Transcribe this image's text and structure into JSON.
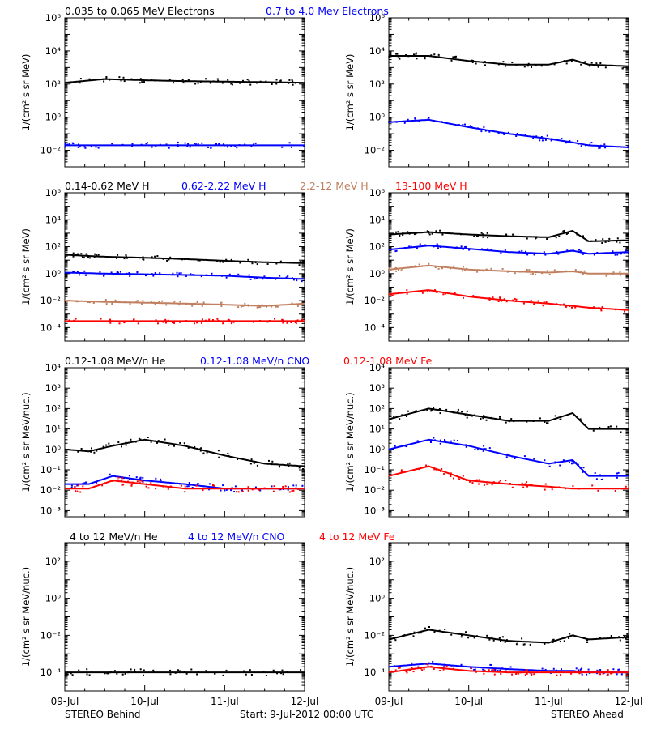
{
  "colors": {
    "black": "#000000",
    "blue": "#0000ff",
    "tan": "#c08060",
    "red": "#ff0000"
  },
  "x_ticks": [
    "09-Jul",
    "10-Jul",
    "11-Jul",
    "12-Jul"
  ],
  "footer": {
    "left": "STEREO Behind",
    "center": "Start:  9-Jul-2012 00:00 UTC",
    "right": "STEREO Ahead"
  },
  "chart_data": [
    {
      "type": "scatter",
      "panel": "electrons-behind",
      "xlabel": "",
      "ylabel": "1/(cm² s sr MeV)",
      "scale": "log",
      "ylim": [
        0.001,
        1000000
      ],
      "y_ticks": [
        [
          "10⁶",
          1000000
        ],
        [
          "10⁴",
          10000
        ],
        [
          "10²",
          100
        ],
        [
          "10⁰",
          1
        ],
        [
          "10⁻²",
          0.01
        ]
      ],
      "x": [
        0,
        0.5,
        1,
        1.5,
        2,
        2.5,
        3
      ],
      "series": [
        {
          "name": "0.035 to 0.065 MeV Electrons",
          "color": "#000000",
          "y": [
            120,
            200,
            170,
            150,
            140,
            130,
            120
          ]
        },
        {
          "name": "0.7 to 4.0 Mev Electrons",
          "color": "#0000ff",
          "y": [
            0.02,
            0.02,
            0.02,
            0.02,
            0.02,
            0.02,
            0.02
          ]
        }
      ]
    },
    {
      "type": "scatter",
      "panel": "electrons-ahead",
      "xlabel": "",
      "ylabel": "1/(cm² s sr MeV)",
      "scale": "log",
      "ylim": [
        0.001,
        1000000
      ],
      "y_ticks": [
        [
          "10⁶",
          1000000
        ],
        [
          "10⁴",
          10000
        ],
        [
          "10²",
          100
        ],
        [
          "10⁰",
          1
        ],
        [
          "10⁻²",
          0.01
        ]
      ],
      "x": [
        0,
        0.5,
        1,
        1.5,
        2,
        2.3,
        2.5,
        3
      ],
      "series": [
        {
          "name": "",
          "color": "#000000",
          "y": [
            5000,
            5000,
            2500,
            1500,
            1500,
            3000,
            1500,
            1200
          ]
        },
        {
          "name": "",
          "color": "#0000ff",
          "y": [
            0.5,
            0.7,
            0.25,
            0.1,
            0.05,
            0.03,
            0.02,
            0.015
          ]
        }
      ]
    },
    {
      "type": "scatter",
      "panel": "protons-behind",
      "xlabel": "",
      "ylabel": "1/(cm² s sr MeV)",
      "scale": "log",
      "ylim": [
        1e-05,
        1000000
      ],
      "y_ticks": [
        [
          "10⁶",
          1000000
        ],
        [
          "10⁴",
          10000
        ],
        [
          "10²",
          100
        ],
        [
          "10⁰",
          1
        ],
        [
          "10⁻²",
          0.01
        ],
        [
          "10⁻⁴",
          0.0001
        ]
      ],
      "x": [
        0,
        0.5,
        1,
        1.5,
        2,
        2.5,
        3
      ],
      "series": [
        {
          "name": "0.14-0.62 MeV H",
          "color": "#000000",
          "y": [
            25,
            18,
            15,
            12,
            9,
            7,
            6
          ]
        },
        {
          "name": "0.62-2.22 MeV H",
          "color": "#0000ff",
          "y": [
            1.2,
            1.0,
            0.9,
            0.8,
            0.7,
            0.5,
            0.4
          ]
        },
        {
          "name": "2.2-12 MeV H",
          "color": "#c08060",
          "y": [
            0.01,
            0.008,
            0.007,
            0.006,
            0.005,
            0.004,
            0.006
          ]
        },
        {
          "name": "13-100 MeV H",
          "color": "#ff0000",
          "y": [
            0.0003,
            0.0003,
            0.0003,
            0.0003,
            0.0003,
            0.0003,
            0.0003
          ]
        }
      ]
    },
    {
      "type": "scatter",
      "panel": "protons-ahead",
      "xlabel": "",
      "ylabel": "1/(cm² s sr MeV)",
      "scale": "log",
      "ylim": [
        1e-05,
        1000000
      ],
      "y_ticks": [
        [
          "10⁶",
          1000000
        ],
        [
          "10⁴",
          10000
        ],
        [
          "10²",
          100
        ],
        [
          "10⁰",
          1
        ],
        [
          "10⁻²",
          0.01
        ],
        [
          "10⁻⁴",
          0.0001
        ]
      ],
      "x": [
        0,
        0.5,
        1,
        1.5,
        2,
        2.3,
        2.5,
        3
      ],
      "series": [
        {
          "name": "",
          "color": "#000000",
          "y": [
            800,
            1200,
            800,
            600,
            500,
            1500,
            250,
            300
          ]
        },
        {
          "name": "",
          "color": "#0000ff",
          "y": [
            60,
            120,
            70,
            40,
            30,
            50,
            30,
            40
          ]
        },
        {
          "name": "",
          "color": "#c08060",
          "y": [
            2,
            4,
            2,
            1.5,
            1.2,
            1.5,
            1.0,
            1.0
          ]
        },
        {
          "name": "",
          "color": "#ff0000",
          "y": [
            0.03,
            0.06,
            0.02,
            0.01,
            0.006,
            0.004,
            0.003,
            0.002
          ]
        }
      ]
    },
    {
      "type": "scatter",
      "panel": "heavy-ions-behind",
      "xlabel": "",
      "ylabel": "1/(cm² s sr MeV/nuc.)",
      "scale": "log",
      "ylim": [
        0.0005,
        10000
      ],
      "y_ticks": [
        [
          "10⁴",
          10000
        ],
        [
          "10³",
          1000
        ],
        [
          "10²",
          100
        ],
        [
          "10¹",
          10
        ],
        [
          "10⁰",
          1
        ],
        [
          "10⁻¹",
          0.1
        ],
        [
          "10⁻²",
          0.01
        ],
        [
          "10⁻³",
          0.001
        ]
      ],
      "x": [
        0,
        0.3,
        0.6,
        1.0,
        1.5,
        2.0,
        2.5,
        3.0
      ],
      "series": [
        {
          "name": "0.12-1.08 MeV/n He",
          "color": "#000000",
          "y": [
            1.0,
            0.8,
            1.5,
            3.0,
            1.5,
            0.5,
            0.2,
            0.15
          ]
        },
        {
          "name": "0.12-1.08 MeV/n CNO",
          "color": "#0000ff",
          "y": [
            0.02,
            0.02,
            0.05,
            0.03,
            0.02,
            0.012,
            0.012,
            0.012
          ]
        },
        {
          "name": "0.12-1.08 MeV Fe",
          "color": "#ff0000",
          "y": [
            0.012,
            0.012,
            0.03,
            0.02,
            0.012,
            0.012,
            0.012,
            0.012
          ]
        }
      ]
    },
    {
      "type": "scatter",
      "panel": "heavy-ions-ahead",
      "xlabel": "",
      "ylabel": "1/(cm² s sr MeV/nuc.)",
      "scale": "log",
      "ylim": [
        0.0005,
        10000
      ],
      "y_ticks": [
        [
          "10⁴",
          10000
        ],
        [
          "10³",
          1000
        ],
        [
          "10²",
          100
        ],
        [
          "10¹",
          10
        ],
        [
          "10⁰",
          1
        ],
        [
          "10⁻¹",
          0.1
        ],
        [
          "10⁻²",
          0.01
        ],
        [
          "10⁻³",
          0.001
        ]
      ],
      "x": [
        0,
        0.5,
        1.0,
        1.5,
        2.0,
        2.3,
        2.5,
        3.0
      ],
      "series": [
        {
          "name": "",
          "color": "#000000",
          "y": [
            30,
            100,
            50,
            25,
            25,
            60,
            10,
            10
          ]
        },
        {
          "name": "",
          "color": "#0000ff",
          "y": [
            1.0,
            3.0,
            1.5,
            0.5,
            0.2,
            0.3,
            0.05,
            0.05
          ]
        },
        {
          "name": "",
          "color": "#ff0000",
          "y": [
            0.05,
            0.15,
            0.03,
            0.02,
            0.015,
            0.012,
            0.012,
            0.012
          ]
        }
      ]
    },
    {
      "type": "scatter",
      "panel": "high-energy-behind",
      "xlabel": "",
      "ylabel": "1/(cm² s sr MeV/nuc.)",
      "scale": "log",
      "ylim": [
        1e-05,
        1000
      ],
      "y_ticks": [
        [
          "10²",
          100
        ],
        [
          "10⁰",
          1
        ],
        [
          "10⁻²",
          0.01
        ],
        [
          "10⁻⁴",
          0.0001
        ]
      ],
      "x": [
        0,
        0.5,
        1.0,
        1.5,
        2.0,
        2.5,
        3.0
      ],
      "series": [
        {
          "name": "4 to 12 MeV/n He",
          "color": "#000000",
          "y": [
            0.0001,
            0.0001,
            0.0001,
            0.0001,
            0.0001,
            0.0001,
            0.0001
          ]
        },
        {
          "name": "4 to 12 MeV/n CNO",
          "color": "#0000ff",
          "y": []
        },
        {
          "name": "4 to 12 MeV Fe",
          "color": "#ff0000",
          "y": []
        }
      ]
    },
    {
      "type": "scatter",
      "panel": "high-energy-ahead",
      "xlabel": "",
      "ylabel": "1/(cm² s sr MeV/nuc.)",
      "scale": "log",
      "ylim": [
        1e-05,
        1000
      ],
      "y_ticks": [
        [
          "10²",
          100
        ],
        [
          "10⁰",
          1
        ],
        [
          "10⁻²",
          0.01
        ],
        [
          "10⁻⁴",
          0.0001
        ]
      ],
      "x": [
        0,
        0.5,
        1.0,
        1.5,
        2.0,
        2.3,
        2.5,
        3.0
      ],
      "series": [
        {
          "name": "",
          "color": "#000000",
          "y": [
            0.006,
            0.02,
            0.01,
            0.005,
            0.004,
            0.01,
            0.006,
            0.008
          ]
        },
        {
          "name": "",
          "color": "#0000ff",
          "y": [
            0.0002,
            0.0003,
            0.0002,
            0.00015,
            0.00012,
            0.00012,
            0.0001,
            0.0001
          ]
        },
        {
          "name": "",
          "color": "#ff0000",
          "y": [
            0.0001,
            0.0002,
            0.00012,
            0.0001,
            0.0001,
            0.0001,
            0.0001,
            0.0001
          ]
        }
      ]
    }
  ]
}
